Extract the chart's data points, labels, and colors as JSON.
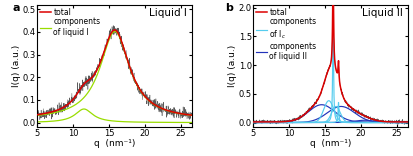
{
  "panel_a": {
    "title": "Liquid I",
    "xlabel": "q  (nm⁻¹)",
    "ylabel": "I(q) (a.u.)",
    "xlim": [
      5,
      26.5
    ],
    "ylim": [
      -0.02,
      0.52
    ],
    "yticks": [
      0.0,
      0.1,
      0.2,
      0.3,
      0.4,
      0.5
    ],
    "xticks": [
      5,
      10,
      15,
      20,
      25
    ],
    "noise_color": "#222222",
    "fit_color": "#dd0000",
    "component_color": "#99dd00",
    "label": "a"
  },
  "panel_b": {
    "title": "Liquid II",
    "xlabel": "q  (nm⁻¹)",
    "ylabel": "I(q) (a.u.)",
    "xlim": [
      5,
      26.5
    ],
    "ylim": [
      -0.08,
      2.05
    ],
    "yticks": [
      0.0,
      0.5,
      1.0,
      1.5,
      2.0
    ],
    "xticks": [
      5,
      10,
      15,
      20,
      25
    ],
    "noise_color": "#222222",
    "fit_color": "#dd0000",
    "ice_color": "#55ccee",
    "liquid2_color": "#2233bb",
    "label": "b"
  }
}
